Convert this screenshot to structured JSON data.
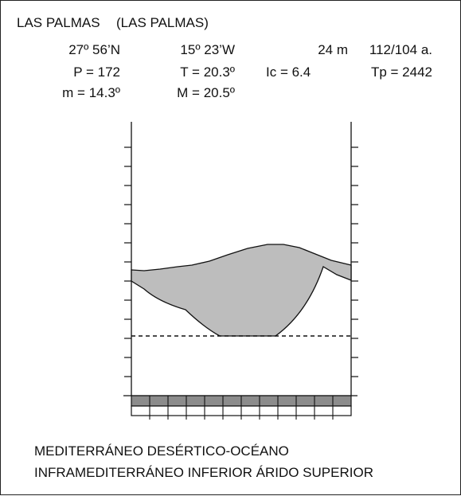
{
  "header": {
    "station": "LAS PALMAS",
    "province": "(LAS PALMAS)",
    "latitude": "27º  56’N",
    "longitude": "15º  23’W",
    "altitude": "24  m",
    "years": "112/104  a.",
    "precipitation": "P = 172",
    "mean_temp": "T = 20.3º",
    "continentality": "Ic = 6.4",
    "positive_temp": "Tp = 2442",
    "min_cold": "m = 14.3º",
    "max_cold": "M = 20.5º"
  },
  "footer": {
    "bioclimate": "MEDITERRÁNEO DESÉRTICO-OCÉANO",
    "bioclimatic_belt": "INFRAMEDITERRÁNEO INFERIOR ÁRIDO SUPERIOR"
  },
  "colors": {
    "fill": "#bdbdbd",
    "stroke": "#111111",
    "frost_band": "#8c8c8c"
  }
}
